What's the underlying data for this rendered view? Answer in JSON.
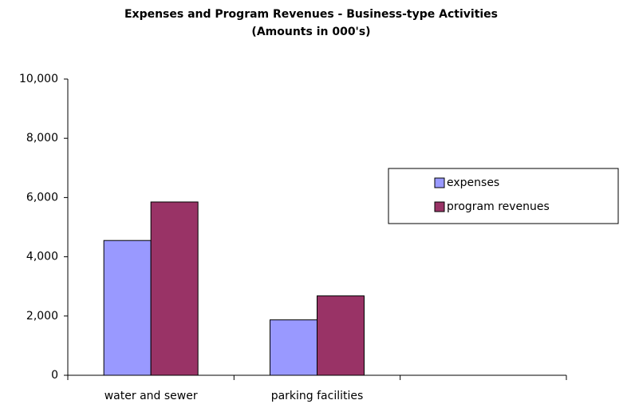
{
  "chart_data": {
    "type": "bar",
    "title": "Expenses and Program Revenues - Business-type Activities",
    "subtitle": "(Amounts in 000's)",
    "categories": [
      "water and sewer",
      "parking facilities",
      null
    ],
    "series": [
      {
        "name": "expenses",
        "color": "#9999ff",
        "values": [
          4550,
          1870,
          null
        ]
      },
      {
        "name": "program revenues",
        "color": "#993366",
        "values": [
          5850,
          2680,
          null
        ]
      }
    ],
    "ylim": [
      0,
      10000
    ],
    "yticks": [
      0,
      {
        "value": 2000,
        "label": "2,000"
      },
      {
        "value": 4000,
        "label": "4,000"
      },
      {
        "value": 6000,
        "label": "6,000"
      },
      {
        "value": 8000,
        "label": "8,000"
      },
      {
        "value": 10000,
        "label": "10,000"
      }
    ],
    "grid": false,
    "legend": "right"
  }
}
